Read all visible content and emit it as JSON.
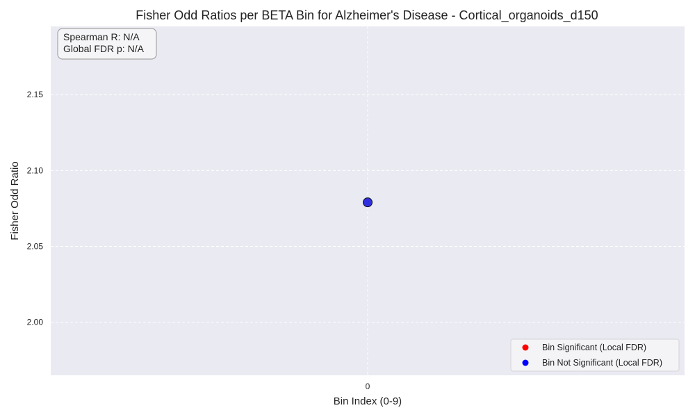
{
  "chart_data": {
    "type": "scatter",
    "title": "Fisher Odd Ratios per BETA Bin for Alzheimer's Disease - Cortical_organoids_d150",
    "xlabel": "Bin Index (0-9)",
    "ylabel": "Fisher Odd Ratio",
    "xlim": [
      -1,
      1
    ],
    "ylim": [
      1.965,
      2.195
    ],
    "x_ticks": [
      0
    ],
    "x_tick_labels": [
      "0"
    ],
    "y_ticks": [
      2.0,
      2.05,
      2.1,
      2.15
    ],
    "y_tick_labels": [
      "2.00",
      "2.05",
      "2.10",
      "2.15"
    ],
    "grid": true,
    "grid_style": "dashed",
    "background_color": "#eaeaf2",
    "points": [
      {
        "x": 0,
        "y": 2.079,
        "significant": false,
        "color": "#3030e0"
      }
    ],
    "legend": {
      "position": "lower-right",
      "entries": [
        {
          "label": "Bin Significant (Local FDR)",
          "color": "#ff0000"
        },
        {
          "label": "Bin Not Significant (Local FDR)",
          "color": "#0000ff"
        }
      ]
    },
    "annotation_lines": [
      "Spearman R: N/A",
      "Global FDR p: N/A"
    ]
  }
}
